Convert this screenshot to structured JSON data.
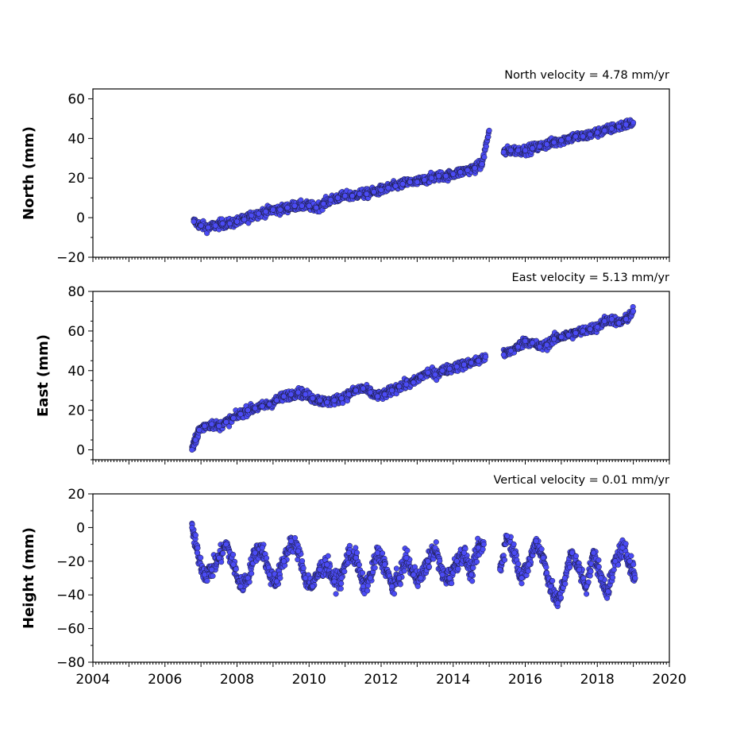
{
  "colors": {
    "marker_fill": "#4b4bf5",
    "marker_edge": "#1a1a3a"
  },
  "chart_data": [
    {
      "type": "scatter",
      "title": "North velocity = 4.78 mm/yr",
      "ylabel": "North (mm)",
      "xlim": [
        2004,
        2020
      ],
      "ylim": [
        -20,
        65
      ],
      "yticks": [
        -20,
        0,
        20,
        40,
        60
      ],
      "ytick_labels": [
        "−20",
        "0",
        "20",
        "40",
        "60"
      ],
      "xtick_labels": [],
      "series": [
        {
          "x": [
            2006.8,
            2007.0,
            2007.2,
            2007.4,
            2007.6,
            2007.8,
            2008.0,
            2008.2,
            2008.4,
            2008.6,
            2008.8,
            2009.0,
            2009.2,
            2009.4,
            2009.6,
            2009.8,
            2010.0,
            2010.2,
            2010.4,
            2010.6,
            2010.8,
            2011.0,
            2011.2,
            2011.4,
            2011.6,
            2011.8,
            2012.0,
            2012.2,
            2012.4,
            2012.6,
            2012.8,
            2013.0,
            2013.2,
            2013.4,
            2013.6,
            2013.8,
            2014.0,
            2014.2,
            2014.4,
            2014.6,
            2014.8,
            2015.0,
            2015.4,
            2015.6,
            2015.8,
            2016.0,
            2016.2,
            2016.4,
            2016.6,
            2016.8,
            2017.0,
            2017.2,
            2017.4,
            2017.6,
            2017.8,
            2018.0,
            2018.2,
            2018.4,
            2018.6,
            2018.8,
            2019.0
          ],
          "y": [
            -2,
            -4,
            -5,
            -4,
            -3,
            -3,
            -2,
            -1,
            1,
            2,
            3,
            4,
            4,
            5,
            6,
            6,
            6,
            5,
            7,
            9,
            10,
            11,
            11,
            12,
            12,
            13,
            14,
            15,
            16,
            17,
            18,
            18,
            19,
            20,
            21,
            21,
            22,
            23,
            24,
            25,
            27,
            44,
            33,
            34,
            34,
            34,
            35,
            36,
            37,
            38,
            39,
            40,
            41,
            41,
            42,
            43,
            44,
            45,
            46,
            47,
            48
          ]
        }
      ]
    },
    {
      "type": "scatter",
      "title": "East velocity = 5.13 mm/yr",
      "ylabel": "East (mm)",
      "xlim": [
        2004,
        2020
      ],
      "ylim": [
        -5,
        80
      ],
      "yticks": [
        0,
        20,
        40,
        60,
        80
      ],
      "ytick_labels": [
        "0",
        "20",
        "40",
        "60",
        "80"
      ],
      "xtick_labels": [],
      "series": [
        {
          "x": [
            2006.75,
            2006.85,
            2006.95,
            2007.1,
            2007.3,
            2007.5,
            2007.7,
            2007.9,
            2008.1,
            2008.3,
            2008.5,
            2008.7,
            2008.9,
            2009.1,
            2009.3,
            2009.5,
            2009.7,
            2009.9,
            2010.1,
            2010.3,
            2010.5,
            2010.7,
            2010.9,
            2011.1,
            2011.3,
            2011.5,
            2011.7,
            2011.9,
            2012.1,
            2012.3,
            2012.5,
            2012.7,
            2012.9,
            2013.1,
            2013.3,
            2013.5,
            2013.7,
            2013.9,
            2014.1,
            2014.3,
            2014.5,
            2014.7,
            2014.9,
            2015.4,
            2015.6,
            2015.8,
            2016.0,
            2016.2,
            2016.4,
            2016.6,
            2016.8,
            2017.0,
            2017.2,
            2017.4,
            2017.6,
            2017.8,
            2018.0,
            2018.2,
            2018.4,
            2018.6,
            2018.8,
            2019.0
          ],
          "y": [
            0,
            5,
            10,
            12,
            13,
            12,
            14,
            16,
            18,
            20,
            21,
            22,
            23,
            25,
            27,
            28,
            29,
            28,
            26,
            25,
            24,
            25,
            26,
            28,
            30,
            31,
            29,
            27,
            28,
            30,
            32,
            33,
            34,
            37,
            39,
            38,
            40,
            41,
            42,
            43,
            44,
            45,
            47,
            48,
            50,
            52,
            55,
            54,
            52,
            53,
            56,
            57,
            58,
            59,
            60,
            61,
            62,
            65,
            66,
            64,
            66,
            70
          ]
        }
      ]
    },
    {
      "type": "scatter",
      "title": "Vertical velocity = 0.01 mm/yr",
      "ylabel": "Height (mm)",
      "xlim": [
        2004,
        2020
      ],
      "ylim": [
        -80,
        20
      ],
      "yticks": [
        -80,
        -60,
        -40,
        -20,
        0,
        20
      ],
      "ytick_labels": [
        "−80",
        "−60",
        "−40",
        "−20",
        "0",
        "20"
      ],
      "xticks": [
        2004,
        2006,
        2008,
        2010,
        2012,
        2014,
        2016,
        2018,
        2020
      ],
      "xtick_labels": [
        "2004",
        "2006",
        "2008",
        "2010",
        "2012",
        "2014",
        "2016",
        "2018",
        "2020"
      ],
      "series": [
        {
          "x": [
            2006.75,
            2006.9,
            2007.1,
            2007.3,
            2007.5,
            2007.7,
            2007.9,
            2008.1,
            2008.3,
            2008.5,
            2008.7,
            2008.9,
            2009.1,
            2009.3,
            2009.5,
            2009.7,
            2009.9,
            2010.1,
            2010.3,
            2010.5,
            2010.7,
            2010.9,
            2011.1,
            2011.3,
            2011.5,
            2011.7,
            2011.9,
            2012.1,
            2012.3,
            2012.5,
            2012.7,
            2012.9,
            2013.1,
            2013.3,
            2013.5,
            2013.7,
            2013.9,
            2014.1,
            2014.3,
            2014.5,
            2014.7,
            2014.85,
            2015.3,
            2015.5,
            2015.7,
            2015.9,
            2016.1,
            2016.3,
            2016.5,
            2016.7,
            2016.9,
            2017.1,
            2017.3,
            2017.5,
            2017.7,
            2017.9,
            2018.1,
            2018.3,
            2018.5,
            2018.7,
            2018.9,
            2019.05
          ],
          "y": [
            0,
            -15,
            -28,
            -25,
            -18,
            -10,
            -22,
            -35,
            -30,
            -15,
            -12,
            -28,
            -32,
            -20,
            -8,
            -14,
            -30,
            -35,
            -25,
            -22,
            -32,
            -30,
            -15,
            -18,
            -35,
            -30,
            -15,
            -22,
            -35,
            -30,
            -18,
            -28,
            -30,
            -20,
            -12,
            -28,
            -30,
            -20,
            -15,
            -28,
            -12,
            -10,
            -25,
            -5,
            -15,
            -30,
            -22,
            -8,
            -18,
            -35,
            -45,
            -30,
            -15,
            -25,
            -35,
            -15,
            -30,
            -38,
            -20,
            -12,
            -20,
            -30
          ]
        }
      ]
    }
  ]
}
